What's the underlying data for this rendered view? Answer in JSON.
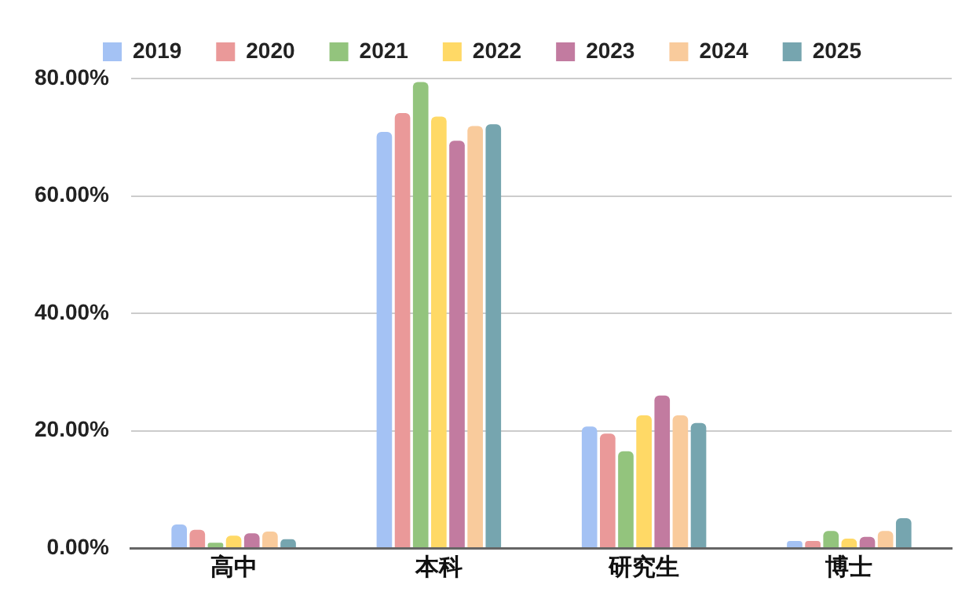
{
  "chart_data": {
    "type": "bar",
    "categories": [
      "高中",
      "本科",
      "研究生",
      "博士"
    ],
    "series": [
      {
        "name": "2019",
        "color": "#a4c2f4",
        "values": [
          4.0,
          70.9,
          20.7,
          1.2
        ]
      },
      {
        "name": "2020",
        "color": "#ea9999",
        "values": [
          3.1,
          74.1,
          19.5,
          1.2
        ]
      },
      {
        "name": "2021",
        "color": "#93c47d",
        "values": [
          0.9,
          79.4,
          16.5,
          2.9
        ]
      },
      {
        "name": "2022",
        "color": "#ffd966",
        "values": [
          2.1,
          73.5,
          22.6,
          1.6
        ]
      },
      {
        "name": "2023",
        "color": "#c27ba0",
        "values": [
          2.5,
          69.4,
          26.0,
          1.9
        ]
      },
      {
        "name": "2024",
        "color": "#f9cb9c",
        "values": [
          2.8,
          71.9,
          22.6,
          2.9
        ]
      },
      {
        "name": "2025",
        "color": "#76a5af",
        "values": [
          1.5,
          72.2,
          21.3,
          5.1
        ]
      }
    ],
    "ylim": [
      0,
      80
    ],
    "yticks": [
      {
        "value": 0,
        "label": "0.00%"
      },
      {
        "value": 20,
        "label": "20.00%"
      },
      {
        "value": 40,
        "label": "40.00%"
      },
      {
        "value": 60,
        "label": "60.00%"
      },
      {
        "value": 80,
        "label": "80.00%"
      }
    ],
    "grid": "y",
    "legend": "top"
  }
}
